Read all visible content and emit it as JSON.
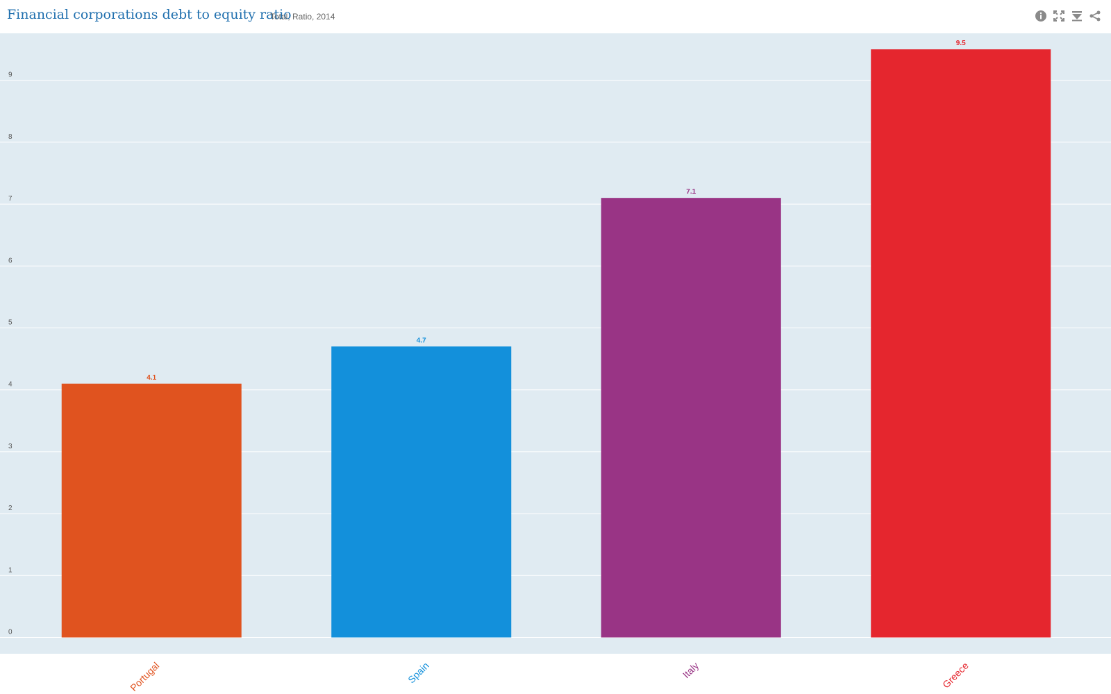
{
  "header": {
    "title": "Financial corporations debt to equity ratio",
    "subtitle": "Total, Ratio, 2014"
  },
  "toolbar": {
    "icons": [
      "info-icon",
      "fullscreen-icon",
      "download-icon",
      "share-icon"
    ]
  },
  "chart_data": {
    "type": "bar",
    "categories": [
      "Portugal",
      "Spain",
      "Italy",
      "Greece"
    ],
    "values": [
      4.1,
      4.7,
      7.1,
      9.5
    ],
    "value_labels": [
      "4.1",
      "4.7",
      "7.1",
      "9.5"
    ],
    "colors": [
      "#e0531f",
      "#1390db",
      "#993485",
      "#e5262e"
    ],
    "ylim": [
      0,
      9.5
    ],
    "yticks": [
      0,
      1,
      2,
      3,
      4,
      5,
      6,
      7,
      8,
      9
    ],
    "grid": true,
    "title": "Financial corporations debt to equity ratio",
    "xlabel": "",
    "ylabel": ""
  }
}
